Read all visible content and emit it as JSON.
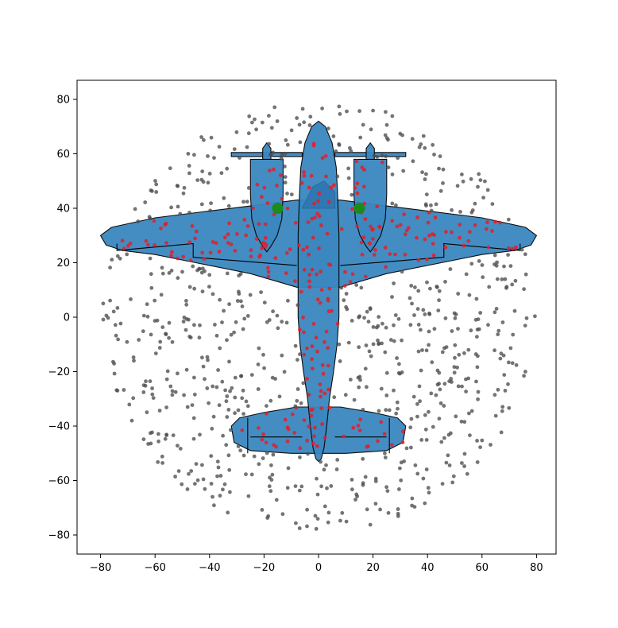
{
  "chart_data": {
    "type": "scatter",
    "title": "",
    "xlabel": "",
    "ylabel": "",
    "xlim": [
      -87.5,
      87.5
    ],
    "ylim": [
      -87,
      87
    ],
    "x_ticks": [
      -80,
      -60,
      -40,
      -20,
      0,
      20,
      40,
      60,
      80
    ],
    "y_ticks": [
      -80,
      -60,
      -40,
      -20,
      0,
      20,
      40,
      60,
      80
    ],
    "x_tick_labels": [
      "−80",
      "−60",
      "−40",
      "−20",
      "0",
      "20",
      "40",
      "60",
      "80"
    ],
    "y_tick_labels": [
      "−80",
      "−60",
      "−40",
      "−20",
      "0",
      "20",
      "40",
      "60",
      "80"
    ],
    "grid": false,
    "legend": "none",
    "background_shape": "airplane silhouette (top view), twin-engine, wingspan about -80 to 80, fuselage from about -53 to 72",
    "colors": {
      "airplane_fill": "#3b87c0",
      "outline": "#000000",
      "miss_points": "#4d4d4d",
      "hit_points": "#e0202a",
      "target_markers": "#1a8c1a"
    },
    "series": [
      {
        "role": "shots outside airplane",
        "color": "#4d4d4d",
        "count_approx": 700,
        "distribution": "uniform within circle of radius about 80 around origin, points not on airplane"
      },
      {
        "role": "shots on airplane",
        "color": "#e0202a",
        "count_approx": 300,
        "distribution": "points from same disc that fall on airplane silhouette"
      },
      {
        "role": "engine targets",
        "color": "#1a8c1a",
        "points": [
          [
            -15,
            40
          ],
          [
            15,
            40
          ]
        ]
      }
    ]
  }
}
